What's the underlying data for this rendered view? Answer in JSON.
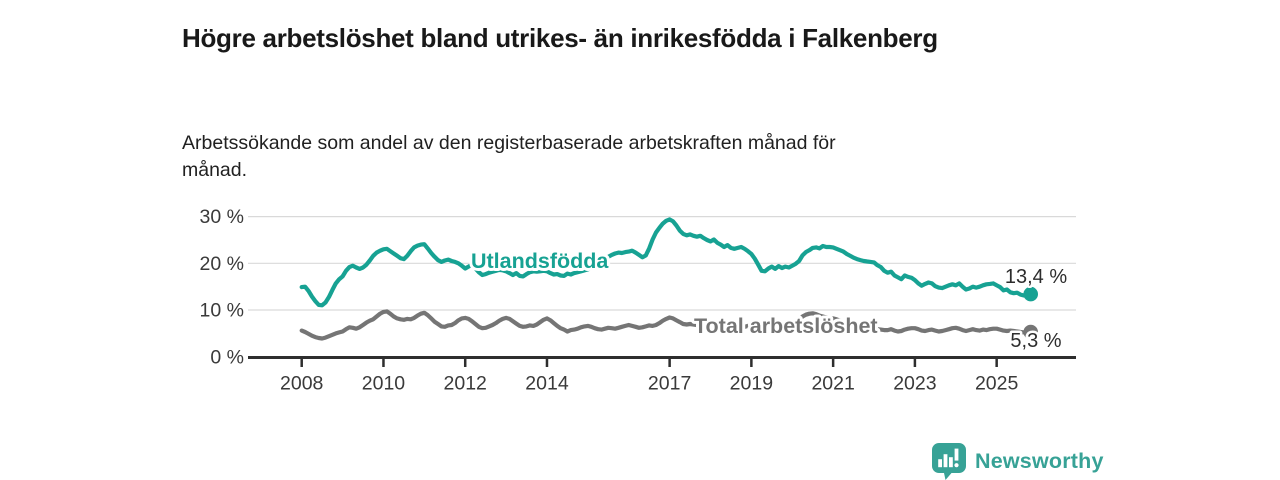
{
  "header": {
    "title": "Högre arbetslöshet bland utrikes- än inrikesfödda i Falkenberg",
    "subtitle": "Arbetssökande som andel av den registerbaserade arbetskraften månad för månad."
  },
  "branding": {
    "logo_text": "Newsworthy",
    "logo_color": "#37a296"
  },
  "chart_data": {
    "type": "line",
    "title": "Högre arbetslöshet bland utrikes- än inrikesfödda i Falkenberg",
    "unit": "%",
    "x_start": {
      "year": 2008,
      "month": 1
    },
    "x_end": {
      "year": 2025,
      "month": 11
    },
    "x_ticks": [
      2008,
      2010,
      2012,
      2014,
      2017,
      2019,
      2021,
      2023,
      2025
    ],
    "y_ticks": [
      {
        "value": 0,
        "label": "0 %"
      },
      {
        "value": 10,
        "label": "10 %"
      },
      {
        "value": 20,
        "label": "20 %"
      },
      {
        "value": 30,
        "label": "30 %"
      }
    ],
    "ylim": [
      0,
      31
    ],
    "grid": true,
    "colors": {
      "grid": "#d9d9d9",
      "axis": "#2e2e2e",
      "tick_text": "#3a3a3a",
      "value_label_text": "#2d2d2d"
    },
    "series": [
      {
        "name": "Utlandsfödda",
        "color": "#17a293",
        "end_label": "13,4 %",
        "end_value": 13.4,
        "values": [
          14.9,
          15.0,
          14.1,
          12.9,
          11.9,
          11.1,
          11.0,
          11.6,
          12.8,
          14.3,
          15.7,
          16.6,
          17.2,
          18.4,
          19.2,
          19.5,
          19.1,
          18.8,
          19.1,
          19.7,
          20.6,
          21.6,
          22.3,
          22.7,
          23.0,
          23.1,
          22.6,
          22.1,
          21.6,
          21.1,
          20.9,
          21.6,
          22.6,
          23.4,
          23.8,
          24.0,
          24.1,
          23.2,
          22.2,
          21.4,
          20.7,
          20.3,
          20.6,
          20.8,
          20.5,
          20.3,
          20.0,
          19.5,
          18.9,
          19.3,
          19.7,
          18.9,
          18.1,
          17.5,
          17.7,
          18.0,
          18.2,
          18.4,
          18.6,
          18.5,
          18.3,
          17.9,
          17.5,
          17.9,
          17.3,
          17.2,
          17.7,
          18.1,
          18.3,
          18.2,
          18.3,
          18.4,
          18.3,
          17.9,
          17.6,
          17.7,
          17.4,
          17.3,
          17.8,
          17.6,
          17.9,
          18.1,
          18.3,
          18.5,
          18.7,
          19.1,
          19.5,
          20.0,
          20.4,
          20.9,
          21.4,
          21.8,
          22.1,
          22.3,
          22.2,
          22.4,
          22.5,
          22.7,
          22.3,
          21.8,
          21.3,
          21.7,
          23.2,
          25.1,
          26.6,
          27.6,
          28.5,
          29.1,
          29.4,
          29.0,
          28.1,
          27.0,
          26.3,
          26.0,
          26.2,
          25.9,
          25.7,
          25.9,
          25.4,
          25.0,
          24.7,
          25.1,
          24.4,
          24.0,
          23.5,
          23.9,
          23.3,
          23.1,
          23.3,
          23.5,
          23.1,
          22.6,
          22.0,
          21.0,
          19.7,
          18.4,
          18.3,
          18.9,
          19.3,
          18.8,
          19.4,
          19.0,
          19.3,
          19.1,
          19.5,
          19.9,
          20.5,
          21.7,
          22.4,
          22.8,
          23.3,
          23.4,
          23.2,
          23.7,
          23.5,
          23.5,
          23.4,
          23.1,
          22.8,
          22.5,
          22.0,
          21.6,
          21.2,
          20.9,
          20.7,
          20.5,
          20.4,
          20.3,
          20.2,
          19.6,
          19.2,
          18.4,
          18.0,
          18.2,
          17.4,
          17.0,
          16.6,
          17.4,
          17.1,
          16.9,
          16.4,
          15.7,
          15.2,
          15.6,
          15.9,
          15.7,
          15.1,
          14.8,
          14.7,
          15.0,
          15.3,
          15.5,
          15.3,
          15.7,
          15.0,
          14.4,
          14.6,
          15.0,
          14.8,
          15.0,
          15.3,
          15.5,
          15.6,
          15.7,
          15.3,
          14.9,
          14.2,
          14.4,
          13.8,
          13.6,
          13.7,
          13.3,
          13.1,
          13.3,
          13.4
        ]
      },
      {
        "name": "Total arbetslöshet",
        "color": "#757575",
        "end_label": "5,3 %",
        "end_value": 5.3,
        "values": [
          5.6,
          5.3,
          4.9,
          4.5,
          4.2,
          4.0,
          3.9,
          4.1,
          4.4,
          4.7,
          5.0,
          5.2,
          5.4,
          5.9,
          6.3,
          6.2,
          6.0,
          6.3,
          6.8,
          7.3,
          7.7,
          8.0,
          8.6,
          9.2,
          9.6,
          9.7,
          9.2,
          8.6,
          8.2,
          8.0,
          7.9,
          8.1,
          8.0,
          8.3,
          8.8,
          9.2,
          9.4,
          8.9,
          8.2,
          7.5,
          7.0,
          6.5,
          6.4,
          6.7,
          6.8,
          7.2,
          7.8,
          8.2,
          8.3,
          8.1,
          7.6,
          7.0,
          6.4,
          6.1,
          6.2,
          6.5,
          6.8,
          7.2,
          7.7,
          8.1,
          8.3,
          8.1,
          7.6,
          7.1,
          6.6,
          6.4,
          6.5,
          6.7,
          6.6,
          6.9,
          7.4,
          7.9,
          8.2,
          7.8,
          7.2,
          6.6,
          6.1,
          5.8,
          5.4,
          5.7,
          5.8,
          6.0,
          6.3,
          6.5,
          6.6,
          6.4,
          6.1,
          5.9,
          5.8,
          6.0,
          6.2,
          6.1,
          6.0,
          6.2,
          6.4,
          6.6,
          6.8,
          6.6,
          6.4,
          6.2,
          6.3,
          6.5,
          6.7,
          6.6,
          6.8,
          7.2,
          7.7,
          8.1,
          8.4,
          8.2,
          7.8,
          7.4,
          7.0,
          6.9,
          7.0,
          6.9,
          6.8,
          6.9,
          7.0,
          7.2,
          7.4,
          7.2,
          6.9,
          6.5,
          6.2,
          6.0,
          6.1,
          6.2,
          6.1,
          6.2,
          6.4,
          6.6,
          6.8,
          6.6,
          6.4,
          6.2,
          6.1,
          6.2,
          6.4,
          6.3,
          6.2,
          6.3,
          6.5,
          6.7,
          7.0,
          7.2,
          7.8,
          8.6,
          9.0,
          9.2,
          9.3,
          9.1,
          8.8,
          8.6,
          8.4,
          8.3,
          8.2,
          8.0,
          7.7,
          7.3,
          7.0,
          6.8,
          6.6,
          6.4,
          6.2,
          6.1,
          6.0,
          6.0,
          6.0,
          5.9,
          5.8,
          5.7,
          5.7,
          5.9,
          5.6,
          5.4,
          5.5,
          5.8,
          6.0,
          6.1,
          6.1,
          5.9,
          5.6,
          5.5,
          5.7,
          5.8,
          5.6,
          5.4,
          5.5,
          5.7,
          5.9,
          6.1,
          6.2,
          6.0,
          5.7,
          5.5,
          5.7,
          5.9,
          5.7,
          5.6,
          5.8,
          5.7,
          5.9,
          6.0,
          6.0,
          5.8,
          5.6,
          5.5,
          5.6,
          5.5,
          5.4,
          5.3,
          5.2,
          5.3,
          5.3
        ]
      }
    ],
    "legend_position": "inline-labels"
  }
}
